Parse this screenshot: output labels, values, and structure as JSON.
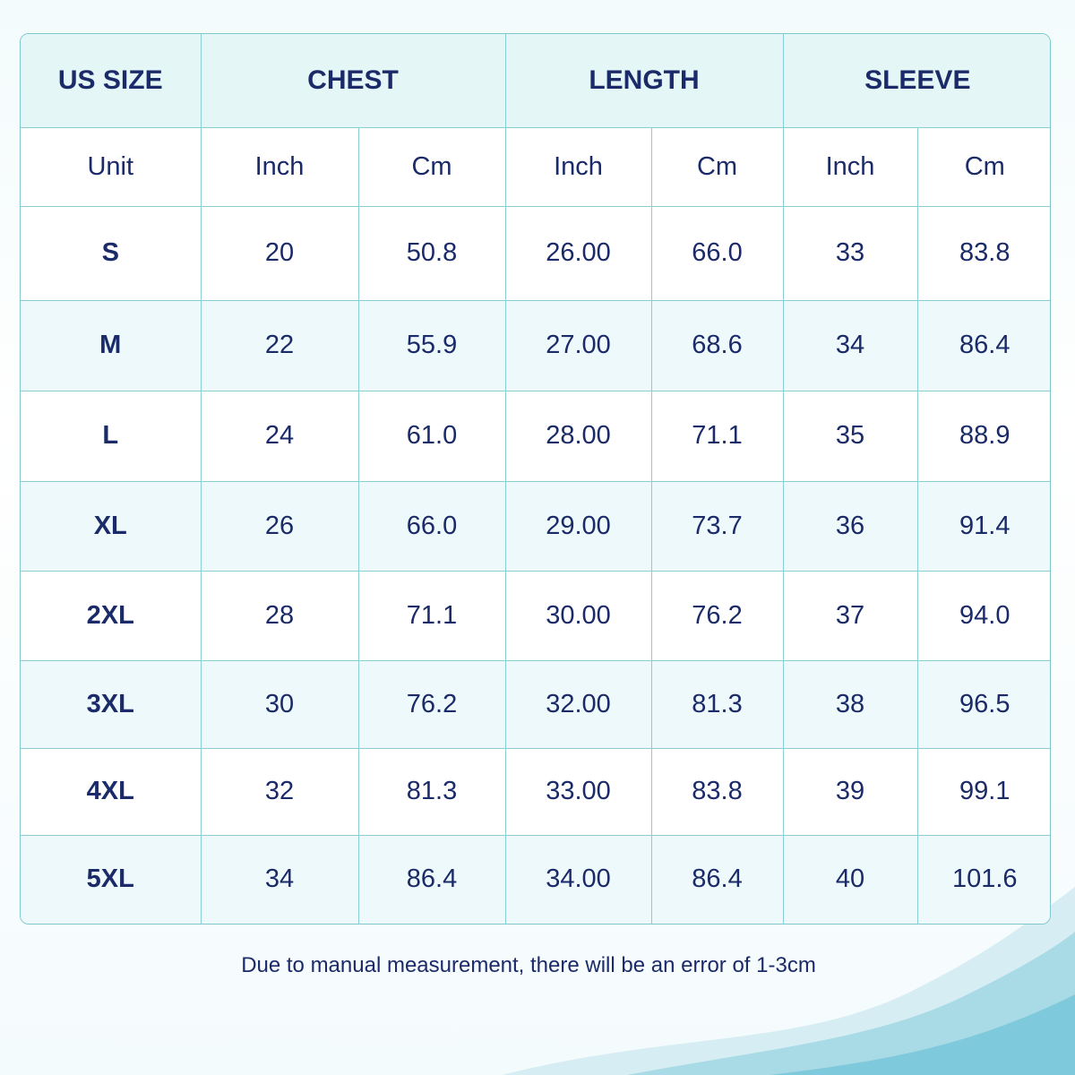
{
  "table": {
    "header": [
      "US SIZE",
      "CHEST",
      "LENGTH",
      "SLEEVE"
    ],
    "units": [
      "Unit",
      "Inch",
      "Cm",
      "Inch",
      "Cm",
      "Inch",
      "Cm"
    ],
    "rows": [
      [
        "S",
        "20",
        "50.8",
        "26.00",
        "66.0",
        "33",
        "83.8"
      ],
      [
        "M",
        "22",
        "55.9",
        "27.00",
        "68.6",
        "34",
        "86.4"
      ],
      [
        "L",
        "24",
        "61.0",
        "28.00",
        "71.1",
        "35",
        "88.9"
      ],
      [
        "XL",
        "26",
        "66.0",
        "29.00",
        "73.7",
        "36",
        "91.4"
      ],
      [
        "2XL",
        "28",
        "71.1",
        "30.00",
        "76.2",
        "37",
        "94.0"
      ],
      [
        "3XL",
        "30",
        "76.2",
        "32.00",
        "81.3",
        "38",
        "96.5"
      ],
      [
        "4XL",
        "32",
        "81.3",
        "33.00",
        "83.8",
        "39",
        "99.1"
      ],
      [
        "5XL",
        "34",
        "86.4",
        "34.00",
        "86.4",
        "40",
        "101.6"
      ]
    ]
  },
  "footnote": "Due to manual measurement, there will be an error of 1-3cm"
}
